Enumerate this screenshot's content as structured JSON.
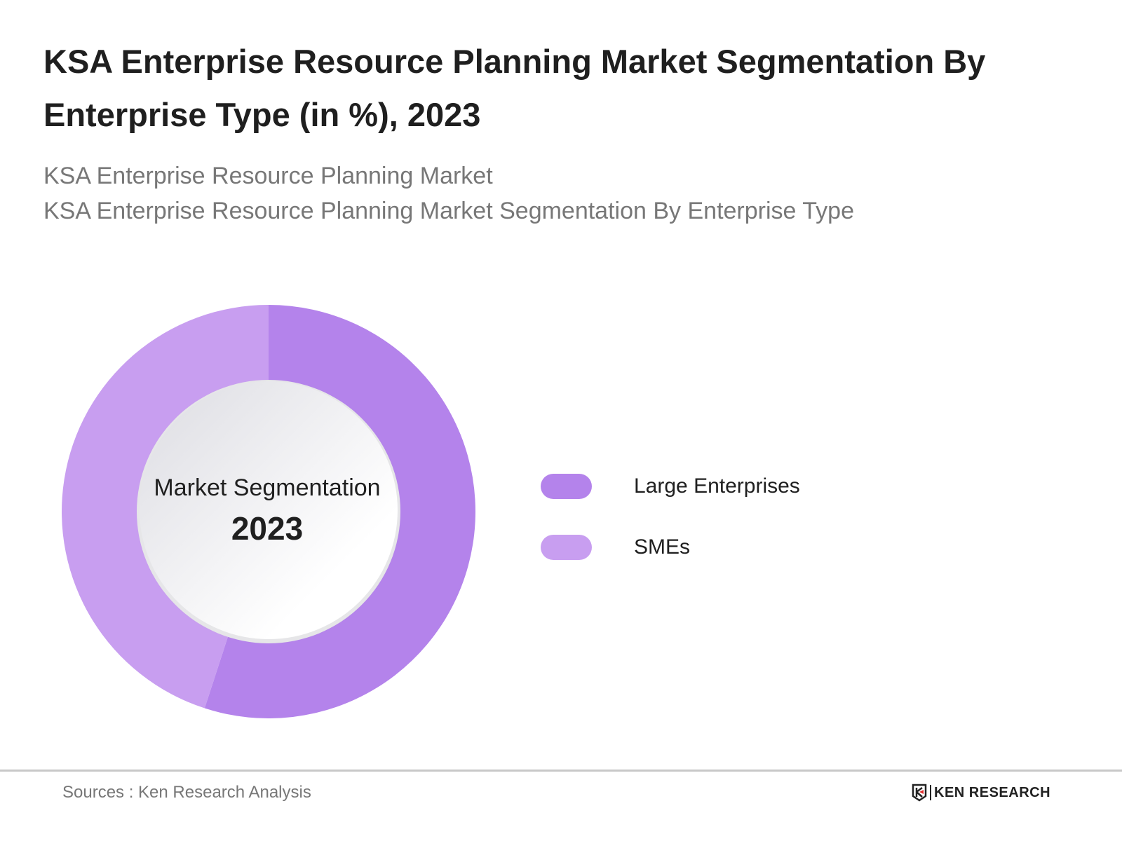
{
  "header": {
    "title": "KSA Enterprise Resource Planning Market Segmentation By Enterprise Type (in %), 2023",
    "subtitle_1": "KSA Enterprise Resource Planning Market",
    "subtitle_2": "KSA Enterprise Resource Planning Market Segmentation By Enterprise Type"
  },
  "chart_data": {
    "type": "pie",
    "variant": "donut",
    "title": "KSA Enterprise Resource Planning Market Segmentation By Enterprise Type (in %), 2023",
    "center_label": "Market Segmentation",
    "center_year": "2023",
    "categories": [
      "Large Enterprises",
      "SMEs"
    ],
    "values": [
      55,
      45
    ],
    "colors": [
      "#b483eb",
      "#c89ef0"
    ],
    "legend_position": "right"
  },
  "footer": {
    "source": "Sources : Ken Research Analysis",
    "logo_text": "KEN RESEARCH"
  }
}
